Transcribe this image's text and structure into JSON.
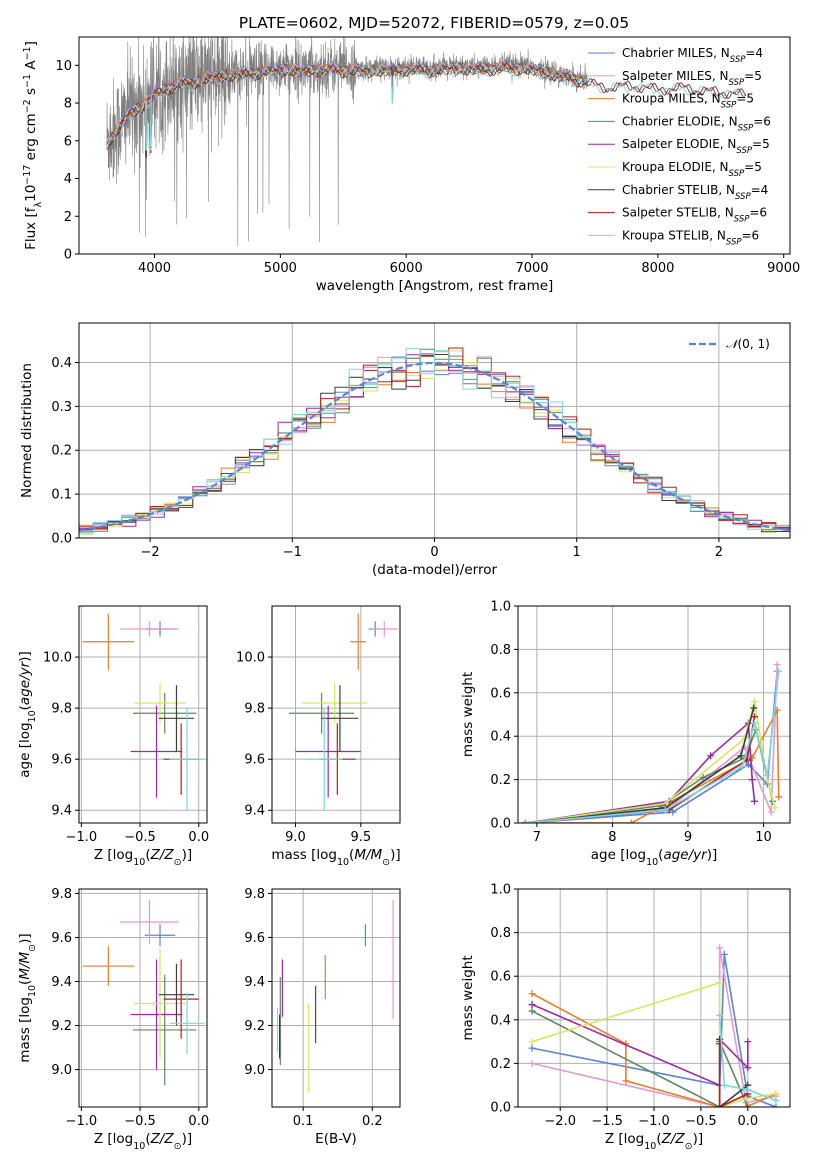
{
  "figure_title": "PLATE=0602, MJD=52072, FIBERID=0579, z=0.05",
  "colors": {
    "chabrier_miles": "#5b84d6",
    "salpeter_miles": "#e49acc",
    "kroupa_miles": "#e87d2a",
    "chabrier_elodie": "#5e8a5e",
    "salpeter_elodie": "#9a2aa6",
    "kroupa_elodie": "#d3e860",
    "chabrier_stelib": "#3d3d3d",
    "salpeter_stelib": "#b22020",
    "kroupa_stelib": "#7fd6dc",
    "gaussian": "#5b84d6",
    "spectrum_data": "#808080"
  },
  "chart_data": [
    {
      "id": "spectrum",
      "type": "line",
      "xlabel": "wavelength [Angstrom, rest frame]",
      "ylabel": "Flux [f_λ10^-17 erg cm^-2 s^-1 A^-1]",
      "xlim": [
        3400,
        9050
      ],
      "ylim": [
        0,
        11.5
      ],
      "xticks": [
        4000,
        5000,
        6000,
        7000,
        8000,
        9000
      ],
      "yticks": [
        0,
        2,
        4,
        6,
        8,
        10
      ],
      "grid": false,
      "legend_position": "right",
      "series_labels": [
        "Chabrier MILES, N_SSP=4",
        "Salpeter MILES, N_SSP=5",
        "Kroupa MILES, N_SSP=5",
        "Chabrier ELODIE, N_SSP=6",
        "Salpeter ELODIE, N_SSP=5",
        "Kroupa ELODIE, N_SSP=5",
        "Chabrier STELIB, N_SSP=4",
        "Salpeter STELIB, N_SSP=6",
        "Kroupa STELIB, N_SSP=6"
      ],
      "model_continuum": {
        "x": [
          3620,
          3700,
          3800,
          3900,
          4000,
          4100,
          4200,
          4300,
          4400,
          4600,
          4800,
          5000,
          5200,
          5400,
          5600,
          5800,
          6000,
          6200,
          6400,
          6600,
          6800,
          7000,
          7200,
          7400,
          7600,
          7800,
          8000,
          8200,
          8400,
          8600,
          8700
        ],
        "y": [
          6.0,
          6.6,
          7.6,
          7.9,
          8.6,
          8.9,
          9.1,
          9.2,
          9.4,
          9.6,
          9.7,
          9.9,
          9.8,
          9.9,
          9.8,
          9.85,
          9.9,
          9.85,
          9.95,
          9.9,
          10.0,
          9.9,
          9.6,
          9.3,
          9.0,
          9.1,
          8.9,
          9.0,
          8.8,
          8.7,
          8.6
        ]
      },
      "data_x_range": [
        3620,
        7440
      ]
    },
    {
      "id": "residuals",
      "type": "line",
      "xlabel": "(data-model)/error",
      "ylabel": "Normed distribution",
      "xlim": [
        -2.5,
        2.5
      ],
      "ylim": [
        0,
        0.49
      ],
      "xticks": [
        -2,
        -1,
        0,
        1,
        2
      ],
      "yticks": [
        0.0,
        0.1,
        0.2,
        0.3,
        0.4
      ],
      "grid": true,
      "legend_position": "top-right",
      "legend_label": "N(0,1)",
      "bin_width": 0.1
    },
    {
      "id": "age_vs_Z",
      "type": "scatter",
      "xlabel": "Z [log10(Z/Z⊙)]",
      "ylabel": "age  [log10(age/yr)]",
      "xlim": [
        -1.02,
        0.07
      ],
      "ylim": [
        9.35,
        10.2
      ],
      "xticks": [
        -1.0,
        -0.5,
        0.0
      ],
      "yticks": [
        9.4,
        9.6,
        9.8,
        10.0
      ],
      "grid": true,
      "points": [
        {
          "series": "chabrier_miles",
          "x": -0.33,
          "y": 10.11,
          "xerr": 0.13,
          "yerr": 0.03
        },
        {
          "series": "salpeter_miles",
          "x": -0.42,
          "y": 10.11,
          "xerr": 0.25,
          "yerr": 0.03
        },
        {
          "series": "kroupa_miles",
          "x": -0.77,
          "y": 10.06,
          "xerr": 0.22,
          "yerr": 0.11
        },
        {
          "series": "chabrier_elodie",
          "x": -0.29,
          "y": 9.78,
          "xerr": 0.27,
          "yerr": 0.08
        },
        {
          "series": "salpeter_elodie",
          "x": -0.36,
          "y": 9.63,
          "xerr": 0.22,
          "yerr": 0.18
        },
        {
          "series": "kroupa_elodie",
          "x": -0.33,
          "y": 9.82,
          "xerr": 0.22,
          "yerr": 0.08
        },
        {
          "series": "chabrier_stelib",
          "x": -0.19,
          "y": 9.76,
          "xerr": 0.15,
          "yerr": 0.13
        },
        {
          "series": "salpeter_stelib",
          "x": -0.15,
          "y": 9.6,
          "xerr": 0.15,
          "yerr": 0.14
        },
        {
          "series": "kroupa_stelib",
          "x": -0.1,
          "y": 9.6,
          "xerr": 0.15,
          "yerr": 0.2
        }
      ]
    },
    {
      "id": "age_vs_mass",
      "type": "scatter",
      "xlabel": "mass [log10(M/M⊙)]",
      "ylabel": "",
      "xlim": [
        8.82,
        9.8
      ],
      "ylim": [
        9.35,
        10.2
      ],
      "xticks": [
        9.0,
        9.5
      ],
      "yticks": [
        9.4,
        9.6,
        9.8,
        10.0
      ],
      "grid": true,
      "points": [
        {
          "series": "chabrier_miles",
          "x": 9.61,
          "y": 10.11,
          "xerr": 0.05,
          "yerr": 0.03
        },
        {
          "series": "salpeter_miles",
          "x": 9.68,
          "y": 10.11,
          "xerr": 0.1,
          "yerr": 0.03
        },
        {
          "series": "kroupa_miles",
          "x": 9.48,
          "y": 10.06,
          "xerr": 0.06,
          "yerr": 0.11
        },
        {
          "series": "chabrier_elodie",
          "x": 9.2,
          "y": 9.78,
          "xerr": 0.25,
          "yerr": 0.08
        },
        {
          "series": "salpeter_elodie",
          "x": 9.25,
          "y": 9.63,
          "xerr": 0.25,
          "yerr": 0.18
        },
        {
          "series": "kroupa_elodie",
          "x": 9.3,
          "y": 9.82,
          "xerr": 0.25,
          "yerr": 0.08
        },
        {
          "series": "chabrier_stelib",
          "x": 9.34,
          "y": 9.76,
          "xerr": 0.14,
          "yerr": 0.13
        },
        {
          "series": "salpeter_stelib",
          "x": 9.32,
          "y": 9.6,
          "xerr": 0.14,
          "yerr": 0.14
        },
        {
          "series": "kroupa_stelib",
          "x": 9.22,
          "y": 9.6,
          "xerr": 0.14,
          "yerr": 0.2
        }
      ]
    },
    {
      "id": "weight_vs_age",
      "type": "line",
      "xlabel": "age  [log10(age/yr)]",
      "ylabel": "mass weight",
      "xlim": [
        6.75,
        10.35
      ],
      "ylim": [
        0,
        1.0
      ],
      "xticks": [
        7,
        8,
        9,
        10
      ],
      "yticks": [
        0.0,
        0.2,
        0.4,
        0.6,
        0.8,
        1.0
      ],
      "grid": true,
      "series": [
        {
          "series": "chabrier_miles",
          "x": [
            6.85,
            8.8,
            9.8,
            10.05,
            10.18
          ],
          "y": [
            0.0,
            0.05,
            0.27,
            0.18,
            0.7
          ]
        },
        {
          "series": "salpeter_miles",
          "x": [
            6.85,
            8.75,
            9.75,
            10.1,
            10.18
          ],
          "y": [
            0.0,
            0.07,
            0.35,
            0.05,
            0.73
          ]
        },
        {
          "series": "kroupa_miles",
          "x": [
            6.85,
            8.25,
            9.85,
            10.18,
            10.2
          ],
          "y": [
            0.0,
            0.0,
            0.3,
            0.52,
            0.12
          ]
        },
        {
          "series": "chabrier_elodie",
          "x": [
            6.85,
            8.65,
            9.2,
            9.75,
            9.9,
            10.12
          ],
          "y": [
            0.0,
            0.08,
            0.21,
            0.3,
            0.43,
            0.1
          ]
        },
        {
          "series": "salpeter_elodie",
          "x": [
            6.85,
            8.75,
            9.3,
            9.8,
            9.85,
            9.88
          ],
          "y": [
            0.0,
            0.1,
            0.31,
            0.46,
            0.2,
            0.1
          ]
        },
        {
          "series": "kroupa_elodie",
          "x": [
            6.85,
            8.7,
            9.75,
            9.88,
            10.05,
            10.15
          ],
          "y": [
            0.0,
            0.09,
            0.39,
            0.56,
            0.2,
            0.07
          ]
        },
        {
          "series": "chabrier_stelib",
          "x": [
            6.85,
            8.7,
            9.7,
            9.87
          ],
          "y": [
            0.0,
            0.07,
            0.31,
            0.53
          ]
        },
        {
          "series": "salpeter_stelib",
          "x": [
            6.85,
            8.75,
            9.78,
            9.88
          ],
          "y": [
            0.0,
            0.06,
            0.29,
            0.49
          ]
        },
        {
          "series": "kroupa_stelib",
          "x": [
            6.85,
            8.7,
            9.72,
            9.88,
            10.05,
            10.2
          ],
          "y": [
            0.0,
            0.06,
            0.26,
            0.46,
            0.22,
            0.7
          ]
        }
      ]
    },
    {
      "id": "mass_vs_Z",
      "type": "scatter",
      "xlabel": "Z [log10(Z/Z⊙)]",
      "ylabel": "mass [log10(M/M⊙)]",
      "xlim": [
        -1.02,
        0.07
      ],
      "ylim": [
        8.83,
        9.82
      ],
      "xticks": [
        -1.0,
        -0.5,
        0.0
      ],
      "yticks": [
        9.0,
        9.2,
        9.4,
        9.6,
        9.8
      ],
      "grid": true,
      "points": [
        {
          "series": "chabrier_miles",
          "x": -0.33,
          "y": 9.61,
          "xerr": 0.13,
          "yerr": 0.05
        },
        {
          "series": "salpeter_miles",
          "x": -0.42,
          "y": 9.67,
          "xerr": 0.25,
          "yerr": 0.1
        },
        {
          "series": "kroupa_miles",
          "x": -0.77,
          "y": 9.47,
          "xerr": 0.22,
          "yerr": 0.09
        },
        {
          "series": "chabrier_elodie",
          "x": -0.29,
          "y": 9.18,
          "xerr": 0.27,
          "yerr": 0.25
        },
        {
          "series": "salpeter_elodie",
          "x": -0.36,
          "y": 9.25,
          "xerr": 0.22,
          "yerr": 0.25
        },
        {
          "series": "kroupa_elodie",
          "x": -0.33,
          "y": 9.3,
          "xerr": 0.22,
          "yerr": 0.25
        },
        {
          "series": "chabrier_stelib",
          "x": -0.19,
          "y": 9.34,
          "xerr": 0.15,
          "yerr": 0.14
        },
        {
          "series": "salpeter_stelib",
          "x": -0.15,
          "y": 9.32,
          "xerr": 0.15,
          "yerr": 0.18
        },
        {
          "series": "kroupa_stelib",
          "x": -0.1,
          "y": 9.21,
          "xerr": 0.15,
          "yerr": 0.14
        }
      ]
    },
    {
      "id": "mass_vs_ebv",
      "type": "scatter",
      "xlabel": "E(B-V)",
      "ylabel": "",
      "xlim": [
        0.055,
        0.24
      ],
      "ylim": [
        8.83,
        9.82
      ],
      "xticks": [
        0.1,
        0.2
      ],
      "yticks": [
        9.0,
        9.2,
        9.4,
        9.6,
        9.8
      ],
      "grid": true,
      "points": [
        {
          "series": "chabrier_miles",
          "x": 0.19,
          "y": 9.61,
          "yerr": 0.05
        },
        {
          "series": "salpeter_miles",
          "x": 0.23,
          "y": 9.5,
          "yerr": 0.27
        },
        {
          "series": "kroupa_miles",
          "x": 0.132,
          "y": 9.42,
          "yerr": 0.1
        },
        {
          "series": "chabrier_elodie",
          "x": 0.067,
          "y": 9.22,
          "yerr": 0.2
        },
        {
          "series": "salpeter_elodie",
          "x": 0.07,
          "y": 9.37,
          "yerr": 0.13
        },
        {
          "series": "kroupa_elodie",
          "x": 0.108,
          "y": 9.1,
          "yerr": 0.2
        },
        {
          "series": "chabrier_stelib",
          "x": 0.066,
          "y": 9.15,
          "yerr": 0.1
        },
        {
          "series": "salpeter_stelib",
          "x": 0.118,
          "y": 9.25,
          "yerr": 0.13
        },
        {
          "series": "kroupa_stelib",
          "x": 0.063,
          "y": 9.18,
          "yerr": 0.1
        }
      ]
    },
    {
      "id": "weight_vs_Z",
      "type": "line",
      "xlabel": "Z [log10(Z/Z⊙)]",
      "ylabel": "mass weight",
      "xlim": [
        -2.45,
        0.45
      ],
      "ylim": [
        0,
        1.0
      ],
      "xticks": [
        -2.0,
        -1.5,
        -1.0,
        -0.5,
        0.0
      ],
      "yticks": [
        0.0,
        0.2,
        0.4,
        0.6,
        0.8,
        1.0
      ],
      "grid": true,
      "series": [
        {
          "series": "chabrier_miles",
          "x": [
            -2.3,
            -0.3,
            -0.25,
            0.0,
            0.3
          ],
          "y": [
            0.27,
            0.1,
            0.7,
            0.05,
            0.0
          ]
        },
        {
          "series": "salpeter_miles",
          "x": [
            -2.3,
            -0.3,
            -0.3,
            -0.02,
            0.3
          ],
          "y": [
            0.2,
            0.0,
            0.73,
            0.02,
            0.05
          ]
        },
        {
          "series": "kroupa_miles",
          "x": [
            -2.3,
            -1.3,
            -1.3,
            -0.3,
            -0.02,
            0.3
          ],
          "y": [
            0.52,
            0.29,
            0.12,
            0.0,
            0.0,
            0.06
          ]
        },
        {
          "series": "chabrier_elodie",
          "x": [
            -2.3,
            -0.3,
            -0.3,
            0.0
          ],
          "y": [
            0.44,
            0.0,
            0.3,
            0.0
          ]
        },
        {
          "series": "salpeter_elodie",
          "x": [
            -2.3,
            -0.3,
            -0.3,
            0.0,
            0.0
          ],
          "y": [
            0.47,
            0.1,
            0.31,
            0.18,
            0.3
          ]
        },
        {
          "series": "kroupa_elodie",
          "x": [
            -2.3,
            -0.3,
            -0.3,
            0.0,
            0.3
          ],
          "y": [
            0.3,
            0.57,
            0.0,
            0.04,
            0.06
          ]
        },
        {
          "series": "chabrier_stelib",
          "x": [
            -0.3,
            -0.3,
            0.0
          ],
          "y": [
            0.31,
            0.0,
            0.1
          ]
        },
        {
          "series": "salpeter_stelib",
          "x": [
            -0.3,
            -0.3,
            0.0
          ],
          "y": [
            0.29,
            0.0,
            0.06
          ]
        },
        {
          "series": "kroupa_stelib",
          "x": [
            -0.3,
            -0.25,
            0.0,
            0.3
          ],
          "y": [
            0.42,
            0.1,
            0.08,
            0.03
          ]
        }
      ]
    }
  ]
}
